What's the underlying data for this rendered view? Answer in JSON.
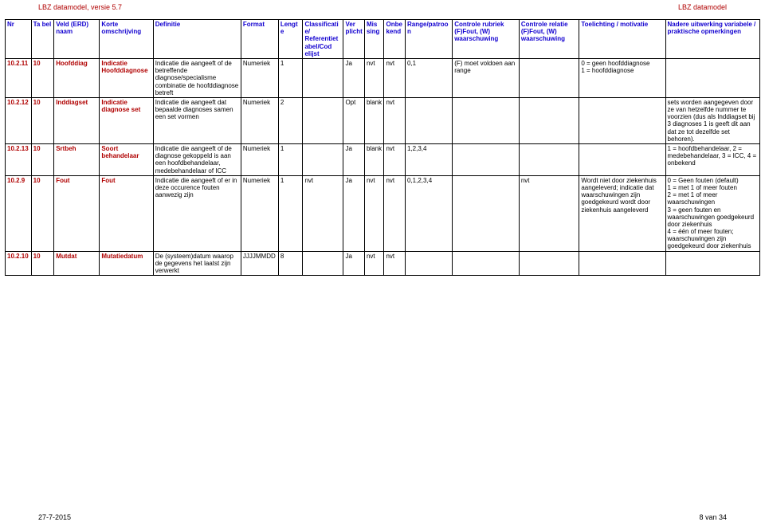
{
  "page": {
    "header_left": "LBZ datamodel, versie 5.7",
    "header_right": "LBZ datamodel",
    "footer_left": "27-7-2015",
    "footer_right": "8 van 34"
  },
  "style": {
    "header_color": "#1200d0",
    "red_color": "#b00000",
    "border_color": "#000000",
    "font_size_pt": 6,
    "background": "#ffffff"
  },
  "table": {
    "columns": [
      "Nr",
      "Ta bel",
      "Veld (ERD) naam",
      "Korte omschrijving",
      "Definitie",
      "Format",
      "Lengte",
      "Classificatie/ Referentietabel/Cod elijst",
      "Ver plicht",
      "Mis sing",
      "Onbe kend",
      "Range/patroon",
      "Controle rubriek (F)Fout, (W) waarschuwing",
      "Controle relatie (F)Fout, (W) waarschuwing",
      "Toelichting / motivatie",
      "Nadere uitwerking variabele / praktische opmerkingen"
    ],
    "rows": [
      {
        "nr": "10.2.11",
        "tabel": "10",
        "veld": "Hoofddiag",
        "korte": "Indicatie Hoofddiagnose",
        "definitie": "Indicatie die aangeeft of de betreffende diagnose/specialisme combinatie de hoofddiagnose betreft",
        "format": "Numeriek",
        "lengte": "1",
        "classif": "",
        "verplicht": "Ja",
        "missing": "nvt",
        "onbekend": "nvt",
        "range": "0,1",
        "controle_r": "(F) moet voldoen aan range",
        "controle_rel": "",
        "toelichting": "0 = geen hoofddiagnose\n1 = hoofddiagnose",
        "nadere": ""
      },
      {
        "nr": "10.2.12",
        "tabel": "10",
        "veld": "Inddiagset",
        "korte": "Indicatie diagnose set",
        "definitie": "Indicatie die aangeeft dat bepaalde diagnoses samen een set vormen",
        "format": "Numeriek",
        "lengte": "2",
        "classif": "",
        "verplicht": "Opt",
        "missing": "blank",
        "onbekend": "nvt",
        "range": "",
        "controle_r": "",
        "controle_rel": "",
        "toelichting": "",
        "nadere": "sets worden aangegeven door ze van hetzelfde nummer te voorzien (dus als Inddiagset bij 3 diagnoses 1 is geeft dit aan dat ze tot dezelfde set behoren)."
      },
      {
        "nr": "10.2.13",
        "tabel": "10",
        "veld": "Srtbeh",
        "korte": "Soort behandelaar",
        "definitie": "Indicatie die aangeeft of de diagnose gekoppeld is aan een hoofdbehandelaar, medebehandelaar of ICC",
        "format": "Numeriek",
        "lengte": "1",
        "classif": "",
        "verplicht": "Ja",
        "missing": "blank",
        "onbekend": "nvt",
        "range": "1,2,3,4",
        "controle_r": "",
        "controle_rel": "",
        "toelichting": "",
        "nadere": "1 = hoofdbehandelaar, 2 = medebehandelaar, 3 = ICC, 4 =  onbekend"
      },
      {
        "nr": "10.2.9",
        "tabel": "10",
        "veld": "Fout",
        "korte": "Fout",
        "definitie": "Indicatie die aangeeft of er in deze occurence fouten aanwezig zijn",
        "format": "Numeriek",
        "lengte": "1",
        "classif": "nvt",
        "verplicht": "Ja",
        "missing": "nvt",
        "onbekend": "nvt",
        "range": "0,1,2,3,4",
        "controle_r": "",
        "controle_rel": "nvt",
        "toelichting": "Wordt niet door ziekenhuis aangeleverd; indicatie dat waarschuwingen zijn goedgekeurd wordt door ziekenhuis aangeleverd",
        "nadere": "0 = Geen fouten (default)\n1 = met 1 of meer fouten\n2 = met 1 of meer waarschuwingen\n3 = geen fouten en waarschuwingen goedgekeurd door ziekenhuis\n4 = één of meer fouten; waarschuwingen zijn goedgekeurd door ziekenhuis"
      },
      {
        "nr": "10.2.10",
        "tabel": "10",
        "veld": "Mutdat",
        "korte": "Mutatiedatum",
        "definitie": "De (systeem)datum waarop de gegevens het laatst zijn verwerkt",
        "format": "JJJJMMDD",
        "lengte": "8",
        "classif": "",
        "verplicht": "Ja",
        "missing": "nvt",
        "onbekend": "nvt",
        "range": "",
        "controle_r": "",
        "controle_rel": "",
        "toelichting": "",
        "nadere": ""
      }
    ]
  }
}
